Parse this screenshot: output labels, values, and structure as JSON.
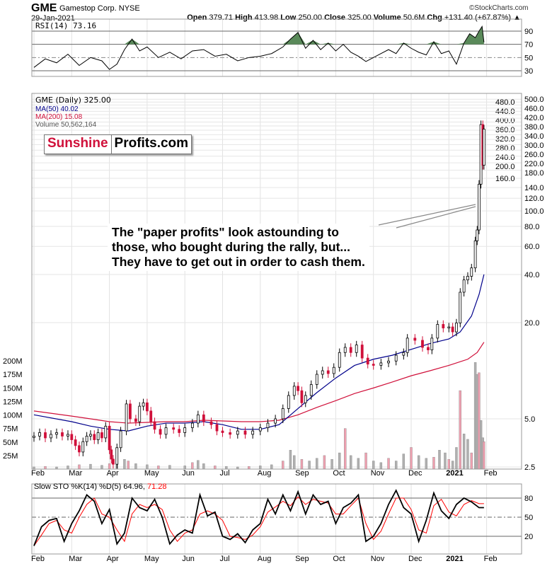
{
  "header": {
    "symbol": "GME",
    "company": "Gamestop Corp. NYSE",
    "date": "29-Jan-2021",
    "brand": "©StockCharts.com",
    "ohlc": [
      {
        "k": "Open",
        "v": "379.71"
      },
      {
        "k": "High",
        "v": "413.98"
      },
      {
        "k": "Low",
        "v": "250.00"
      },
      {
        "k": "Close",
        "v": "325.00"
      },
      {
        "k": "Volume",
        "v": "50.6M"
      },
      {
        "k": "Chg",
        "v": "+131.40 (+67.87%) ▲"
      }
    ]
  },
  "logo": {
    "part1": "Sunshine",
    "part2": "Profits.com"
  },
  "annotation": {
    "lines": [
      "The \"paper profits\" look astounding to",
      "those, who bought during the rally, but...",
      "They have to get out in order to cash them."
    ]
  },
  "chart_data": [
    {
      "type": "line",
      "title": "RSI(14) 73.16",
      "ylim": [
        0,
        100
      ],
      "yticks": [
        "90",
        "70",
        "50",
        "30"
      ],
      "ytick_values": [
        90,
        70,
        50,
        30
      ],
      "colors": {
        "line": "#000000",
        "fill": "#5a8a5a"
      },
      "x": [
        0,
        0.3,
        0.6,
        0.9,
        1.2,
        1.5,
        1.8,
        2.0,
        2.2,
        2.4,
        2.6,
        2.8,
        3.0,
        3.3,
        3.6,
        3.9,
        4.2,
        4.5,
        4.8,
        5.1,
        5.4,
        5.7,
        6.0,
        6.3,
        6.6,
        6.8,
        7.0,
        7.2,
        7.4,
        7.6,
        7.8,
        8.0,
        8.2,
        8.4,
        8.6,
        8.8,
        9.0,
        9.2,
        9.4,
        9.6,
        9.8,
        10.0,
        10.2,
        10.4,
        10.6,
        10.8,
        11.0,
        11.2,
        11.4,
        11.55,
        11.7,
        11.8,
        11.88,
        11.93
      ],
      "values": [
        35,
        48,
        42,
        55,
        38,
        50,
        45,
        32,
        40,
        62,
        78,
        60,
        66,
        50,
        58,
        48,
        60,
        62,
        52,
        55,
        45,
        50,
        52,
        56,
        66,
        78,
        88,
        64,
        76,
        62,
        72,
        60,
        70,
        58,
        52,
        44,
        50,
        56,
        62,
        56,
        72,
        64,
        58,
        54,
        74,
        56,
        60,
        40,
        72,
        86,
        80,
        90,
        97,
        73
      ]
    },
    {
      "type": "candlestick",
      "title": "GME (Daily) 325.00",
      "scale": "log",
      "ylim": [
        2.4,
        500
      ],
      "yticks": [
        "500.0",
        "480.0",
        "460.0",
        "440.0",
        "420.0",
        "400.0",
        "380.0",
        "360.0",
        "340.0",
        "320.0",
        "300.0",
        "280.0",
        "260.0",
        "240.0",
        "220.0",
        "200.0",
        "180.0",
        "160.0",
        "140.0",
        "120.0",
        "100.0",
        "80.0",
        "60.0",
        "40.0",
        "20.0",
        "5.0",
        "2.5"
      ],
      "ytick_values": [
        500,
        480,
        460,
        440,
        420,
        400,
        380,
        360,
        340,
        320,
        300,
        280,
        260,
        240,
        220,
        200,
        180,
        160,
        140,
        120,
        100,
        80,
        60,
        40,
        20,
        5,
        2.5
      ],
      "xlabels": [
        "Feb",
        "Mar",
        "Apr",
        "May",
        "Jun",
        "Jul",
        "Aug",
        "Sep",
        "Oct",
        "Nov",
        "Dec",
        "2021",
        "Feb"
      ],
      "legend": [
        {
          "label": "MA(50) 40.02",
          "color": "#00008b"
        },
        {
          "label": "MA(200) 15.08",
          "color": "#d0103a"
        },
        {
          "label": "Volume 50,562,164",
          "color": "#777777"
        }
      ],
      "close": [
        [
          0,
          3.9
        ],
        [
          0.15,
          4.1
        ],
        [
          0.3,
          3.8
        ],
        [
          0.45,
          4.0
        ],
        [
          0.6,
          4.1
        ],
        [
          0.75,
          3.9
        ],
        [
          0.9,
          4.0
        ],
        [
          1.0,
          3.7
        ],
        [
          1.1,
          3.4
        ],
        [
          1.2,
          3.1
        ],
        [
          1.3,
          3.6
        ],
        [
          1.4,
          3.9
        ],
        [
          1.5,
          4.0
        ],
        [
          1.6,
          3.7
        ],
        [
          1.7,
          4.1
        ],
        [
          1.8,
          3.8
        ],
        [
          1.9,
          4.5
        ],
        [
          2.0,
          3.2
        ],
        [
          2.05,
          2.8
        ],
        [
          2.1,
          2.6
        ],
        [
          2.2,
          3.3
        ],
        [
          2.3,
          4.2
        ],
        [
          2.45,
          6.2
        ],
        [
          2.55,
          5.0
        ],
        [
          2.7,
          4.8
        ],
        [
          2.8,
          6.0
        ],
        [
          2.9,
          6.3
        ],
        [
          3.0,
          5.6
        ],
        [
          3.1,
          4.8
        ],
        [
          3.2,
          4.3
        ],
        [
          3.35,
          4.0
        ],
        [
          3.5,
          4.4
        ],
        [
          3.7,
          4.3
        ],
        [
          3.85,
          4.1
        ],
        [
          4.0,
          4.4
        ],
        [
          4.2,
          4.7
        ],
        [
          4.35,
          5.3
        ],
        [
          4.5,
          4.8
        ],
        [
          4.7,
          4.6
        ],
        [
          4.85,
          4.2
        ],
        [
          5.0,
          4.1
        ],
        [
          5.2,
          4.0
        ],
        [
          5.4,
          4.2
        ],
        [
          5.6,
          4.0
        ],
        [
          5.8,
          4.2
        ],
        [
          6.0,
          4.4
        ],
        [
          6.2,
          4.7
        ],
        [
          6.4,
          5.0
        ],
        [
          6.6,
          5.8
        ],
        [
          6.75,
          7.0
        ],
        [
          6.9,
          8.0
        ],
        [
          7.0,
          7.5
        ],
        [
          7.1,
          6.3
        ],
        [
          7.2,
          7.0
        ],
        [
          7.35,
          8.2
        ],
        [
          7.5,
          9.5
        ],
        [
          7.65,
          10.0
        ],
        [
          7.8,
          9.6
        ],
        [
          7.95,
          10.5
        ],
        [
          8.1,
          13.0
        ],
        [
          8.25,
          14.0
        ],
        [
          8.4,
          13.0
        ],
        [
          8.55,
          14.5
        ],
        [
          8.7,
          12.0
        ],
        [
          8.85,
          11.0
        ],
        [
          9.0,
          10.8
        ],
        [
          9.2,
          11.2
        ],
        [
          9.4,
          11.5
        ],
        [
          9.6,
          12.5
        ],
        [
          9.8,
          13.0
        ],
        [
          9.9,
          16.0
        ],
        [
          10.1,
          15.5
        ],
        [
          10.3,
          14.0
        ],
        [
          10.45,
          13.5
        ],
        [
          10.55,
          16.0
        ],
        [
          10.7,
          19.5
        ],
        [
          10.85,
          18.5
        ],
        [
          11.0,
          18.8
        ],
        [
          11.1,
          17.5
        ],
        [
          11.2,
          19.9
        ],
        [
          11.3,
          31
        ],
        [
          11.4,
          37
        ],
        [
          11.5,
          39
        ],
        [
          11.6,
          44
        ],
        [
          11.7,
          65
        ],
        [
          11.75,
          76
        ],
        [
          11.8,
          147
        ],
        [
          11.85,
          347
        ],
        [
          11.9,
          193
        ],
        [
          11.93,
          325
        ]
      ],
      "ma50": [
        [
          0,
          5.3
        ],
        [
          1,
          4.8
        ],
        [
          1.5,
          4.5
        ],
        [
          2,
          4.3
        ],
        [
          2.5,
          4.2
        ],
        [
          3,
          4.5
        ],
        [
          3.5,
          4.7
        ],
        [
          4,
          4.7
        ],
        [
          4.5,
          4.8
        ],
        [
          5,
          4.6
        ],
        [
          5.5,
          4.3
        ],
        [
          6,
          4.3
        ],
        [
          6.5,
          4.6
        ],
        [
          7,
          5.8
        ],
        [
          7.5,
          7.3
        ],
        [
          8,
          9.0
        ],
        [
          8.5,
          10.8
        ],
        [
          9,
          11.8
        ],
        [
          9.5,
          12.5
        ],
        [
          10,
          13.6
        ],
        [
          10.5,
          14.8
        ],
        [
          11,
          15.8
        ],
        [
          11.3,
          17.5
        ],
        [
          11.6,
          22
        ],
        [
          11.8,
          30
        ],
        [
          11.93,
          40.02
        ]
      ],
      "ma200": [
        [
          0,
          5.6
        ],
        [
          1,
          5.2
        ],
        [
          1.5,
          5.0
        ],
        [
          2,
          4.8
        ],
        [
          2.5,
          4.7
        ],
        [
          3,
          4.75
        ],
        [
          3.5,
          4.8
        ],
        [
          4,
          4.8
        ],
        [
          4.5,
          4.9
        ],
        [
          5,
          4.85
        ],
        [
          5.5,
          4.8
        ],
        [
          6,
          4.8
        ],
        [
          6.5,
          4.9
        ],
        [
          7,
          5.3
        ],
        [
          7.5,
          5.9
        ],
        [
          8,
          6.5
        ],
        [
          8.5,
          7.2
        ],
        [
          9,
          7.8
        ],
        [
          9.5,
          8.5
        ],
        [
          10,
          9.3
        ],
        [
          10.5,
          10.0
        ],
        [
          11,
          10.8
        ],
        [
          11.5,
          11.8
        ],
        [
          11.75,
          13
        ],
        [
          11.93,
          15.08
        ]
      ],
      "volume_ylim": [
        0,
        200
      ],
      "volume_yticks": [
        "200M",
        "175M",
        "150M",
        "125M",
        "100M",
        "75M",
        "50M",
        "25M"
      ],
      "volume_ytick_values": [
        200,
        175,
        150,
        125,
        100,
        75,
        50,
        25
      ],
      "volume_m": [
        [
          0,
          4
        ],
        [
          0.3,
          5
        ],
        [
          0.6,
          4
        ],
        [
          0.9,
          6
        ],
        [
          1.2,
          8
        ],
        [
          1.5,
          9
        ],
        [
          1.8,
          7
        ],
        [
          2.0,
          10
        ],
        [
          2.2,
          12
        ],
        [
          2.4,
          18
        ],
        [
          2.5,
          15
        ],
        [
          2.7,
          10
        ],
        [
          3.0,
          8
        ],
        [
          3.3,
          6
        ],
        [
          3.6,
          7
        ],
        [
          4.0,
          6
        ],
        [
          4.2,
          12
        ],
        [
          4.35,
          16
        ],
        [
          4.5,
          10
        ],
        [
          4.8,
          6
        ],
        [
          5.1,
          5
        ],
        [
          5.4,
          4
        ],
        [
          5.7,
          5
        ],
        [
          6.0,
          6
        ],
        [
          6.3,
          8
        ],
        [
          6.6,
          15
        ],
        [
          6.8,
          35
        ],
        [
          6.9,
          25
        ],
        [
          7.1,
          18
        ],
        [
          7.3,
          15
        ],
        [
          7.5,
          20
        ],
        [
          7.7,
          25
        ],
        [
          7.9,
          18
        ],
        [
          8.1,
          30
        ],
        [
          8.25,
          75
        ],
        [
          8.4,
          25
        ],
        [
          8.6,
          20
        ],
        [
          8.8,
          30
        ],
        [
          9.0,
          15
        ],
        [
          9.2,
          12
        ],
        [
          9.4,
          20
        ],
        [
          9.6,
          15
        ],
        [
          9.8,
          28
        ],
        [
          10.0,
          40
        ],
        [
          10.2,
          25
        ],
        [
          10.4,
          20
        ],
        [
          10.6,
          22
        ],
        [
          10.75,
          35
        ],
        [
          10.9,
          30
        ],
        [
          11.0,
          18
        ],
        [
          11.1,
          15
        ],
        [
          11.2,
          40
        ],
        [
          11.3,
          145
        ],
        [
          11.4,
          65
        ],
        [
          11.5,
          55
        ],
        [
          11.6,
          30
        ],
        [
          11.7,
          197
        ],
        [
          11.75,
          175
        ],
        [
          11.8,
          178
        ],
        [
          11.85,
          90
        ],
        [
          11.9,
          58
        ],
        [
          11.93,
          50.6
        ]
      ]
    },
    {
      "type": "line",
      "title": "Slow STO %K(14) %D(5) 64.96,",
      "title_d": "71.28",
      "ylim": [
        0,
        100
      ],
      "yticks": [
        "80",
        "50",
        "20"
      ],
      "ytick_values": [
        80,
        50,
        20
      ],
      "colors": {
        "k": "#000000",
        "d": "#ff0000"
      },
      "x": [
        0,
        0.2,
        0.4,
        0.6,
        0.8,
        1.0,
        1.2,
        1.4,
        1.6,
        1.8,
        2.0,
        2.2,
        2.4,
        2.6,
        2.8,
        3.0,
        3.2,
        3.4,
        3.6,
        3.8,
        4.0,
        4.2,
        4.4,
        4.6,
        4.8,
        5.0,
        5.2,
        5.4,
        5.6,
        5.8,
        6.0,
        6.2,
        6.4,
        6.6,
        6.8,
        7.0,
        7.2,
        7.4,
        7.6,
        7.8,
        8.0,
        8.2,
        8.4,
        8.6,
        8.8,
        9.0,
        9.2,
        9.4,
        9.6,
        9.8,
        10.0,
        10.2,
        10.4,
        10.6,
        10.8,
        11.0,
        11.2,
        11.4,
        11.6,
        11.8,
        11.93
      ],
      "k": [
        5,
        35,
        45,
        48,
        12,
        40,
        60,
        85,
        75,
        40,
        62,
        8,
        25,
        80,
        65,
        60,
        78,
        50,
        8,
        22,
        30,
        25,
        85,
        52,
        58,
        20,
        15,
        24,
        10,
        30,
        40,
        78,
        55,
        85,
        60,
        90,
        55,
        85,
        70,
        75,
        40,
        65,
        72,
        85,
        12,
        20,
        40,
        70,
        92,
        65,
        55,
        12,
        45,
        88,
        60,
        48,
        70,
        80,
        74,
        64.96,
        64.96
      ],
      "d": [
        5,
        22,
        40,
        45,
        30,
        25,
        50,
        70,
        80,
        55,
        50,
        30,
        12,
        55,
        70,
        65,
        70,
        62,
        30,
        12,
        25,
        30,
        55,
        60,
        55,
        45,
        20,
        18,
        15,
        22,
        35,
        58,
        66,
        75,
        68,
        82,
        70,
        78,
        75,
        72,
        55,
        55,
        68,
        80,
        40,
        15,
        28,
        55,
        80,
        80,
        62,
        30,
        25,
        68,
        78,
        58,
        52,
        70,
        76,
        71.28,
        71.28
      ]
    }
  ]
}
